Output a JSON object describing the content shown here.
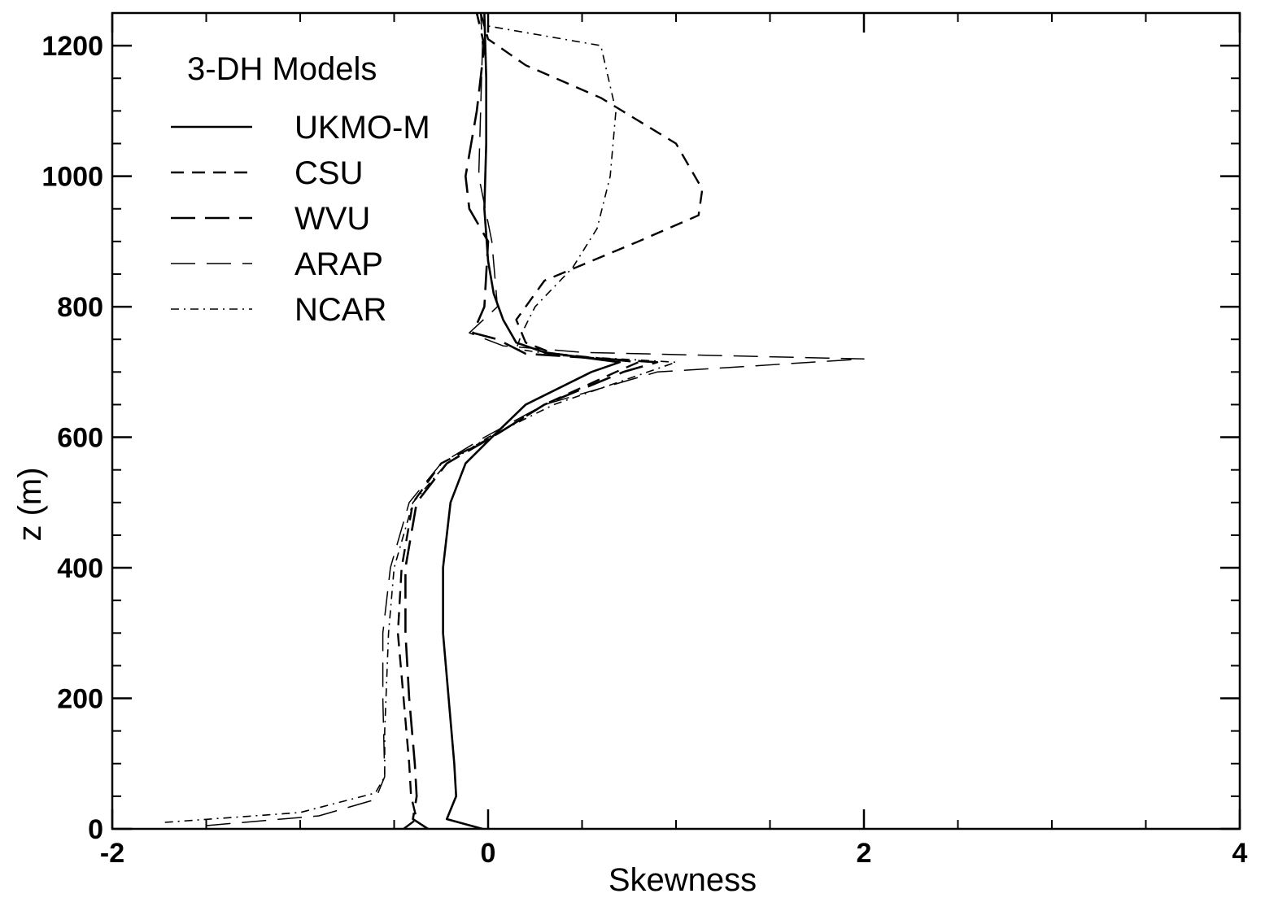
{
  "chart_data": {
    "type": "line",
    "title": "",
    "xlabel": "Skewness",
    "ylabel": "z (m)",
    "xlim": [
      -2,
      4
    ],
    "ylim": [
      0,
      1250
    ],
    "x_ticks": [
      -2,
      0,
      2,
      4
    ],
    "x_tick_labels": [
      "-2",
      "0",
      "2",
      "4"
    ],
    "y_ticks": [
      0,
      200,
      400,
      600,
      800,
      1000,
      1200
    ],
    "y_tick_labels": [
      "0",
      "200",
      "400",
      "600",
      "800",
      "1000",
      "1200"
    ],
    "grid": false,
    "legend": {
      "title": "3-DH Models",
      "position": "top-left"
    },
    "series": [
      {
        "name": "UKMO-M",
        "style": "solid",
        "points": [
          [
            -0.03,
            0
          ],
          [
            -0.22,
            15
          ],
          [
            -0.17,
            50
          ],
          [
            -0.18,
            100
          ],
          [
            -0.21,
            200
          ],
          [
            -0.24,
            300
          ],
          [
            -0.24,
            400
          ],
          [
            -0.2,
            500
          ],
          [
            -0.12,
            560
          ],
          [
            0.02,
            600
          ],
          [
            0.2,
            650
          ],
          [
            0.55,
            700
          ],
          [
            0.7,
            715
          ],
          [
            0.3,
            730
          ],
          [
            0.15,
            745
          ],
          [
            0.08,
            780
          ],
          [
            0.03,
            820
          ],
          [
            0.0,
            870
          ],
          [
            -0.02,
            950
          ],
          [
            -0.01,
            1050
          ],
          [
            -0.01,
            1150
          ],
          [
            -0.02,
            1250
          ]
        ]
      },
      {
        "name": "CSU",
        "style": "dash-short",
        "points": [
          [
            -0.45,
            0
          ],
          [
            -0.38,
            15
          ],
          [
            -0.41,
            50
          ],
          [
            -0.42,
            100
          ],
          [
            -0.45,
            200
          ],
          [
            -0.48,
            300
          ],
          [
            -0.46,
            400
          ],
          [
            -0.4,
            500
          ],
          [
            -0.25,
            560
          ],
          [
            0.02,
            600
          ],
          [
            0.3,
            650
          ],
          [
            0.68,
            700
          ],
          [
            0.8,
            715
          ],
          [
            0.35,
            728
          ],
          [
            0.2,
            745
          ],
          [
            0.15,
            780
          ],
          [
            0.3,
            840
          ],
          [
            0.8,
            900
          ],
          [
            1.12,
            940
          ],
          [
            1.14,
            980
          ],
          [
            1.0,
            1050
          ],
          [
            0.6,
            1120
          ],
          [
            0.2,
            1170
          ],
          [
            0.0,
            1210
          ],
          [
            -0.04,
            1250
          ]
        ]
      },
      {
        "name": "WVU",
        "style": "dash-long",
        "points": [
          [
            -0.32,
            0
          ],
          [
            -0.4,
            15
          ],
          [
            -0.38,
            50
          ],
          [
            -0.39,
            100
          ],
          [
            -0.42,
            200
          ],
          [
            -0.44,
            300
          ],
          [
            -0.44,
            400
          ],
          [
            -0.38,
            500
          ],
          [
            -0.22,
            560
          ],
          [
            0.02,
            600
          ],
          [
            0.3,
            650
          ],
          [
            0.72,
            700
          ],
          [
            0.9,
            715
          ],
          [
            0.2,
            728
          ],
          [
            0.05,
            750
          ],
          [
            -0.08,
            760
          ],
          [
            -0.02,
            800
          ],
          [
            0.0,
            900
          ],
          [
            -0.1,
            950
          ],
          [
            -0.12,
            1000
          ],
          [
            -0.06,
            1100
          ],
          [
            -0.02,
            1200
          ],
          [
            -0.06,
            1250
          ]
        ]
      },
      {
        "name": "ARAP",
        "style": "dash-long-thin",
        "points": [
          [
            -1.5,
            5
          ],
          [
            -0.9,
            20
          ],
          [
            -0.6,
            45
          ],
          [
            -0.55,
            80
          ],
          [
            -0.56,
            200
          ],
          [
            -0.56,
            300
          ],
          [
            -0.52,
            400
          ],
          [
            -0.42,
            500
          ],
          [
            -0.25,
            560
          ],
          [
            -0.02,
            600
          ],
          [
            0.3,
            650
          ],
          [
            0.9,
            700
          ],
          [
            2.0,
            720
          ],
          [
            0.5,
            730
          ],
          [
            0.08,
            740
          ],
          [
            -0.1,
            760
          ],
          [
            0.05,
            800
          ],
          [
            0.02,
            900
          ],
          [
            -0.05,
            1000
          ],
          [
            -0.04,
            1100
          ],
          [
            -0.03,
            1200
          ],
          [
            -0.04,
            1250
          ]
        ]
      },
      {
        "name": "NCAR",
        "style": "dash-dot",
        "points": [
          [
            -1.72,
            10
          ],
          [
            -1.0,
            25
          ],
          [
            -0.6,
            55
          ],
          [
            -0.55,
            80
          ],
          [
            -0.55,
            150
          ],
          [
            -0.53,
            300
          ],
          [
            -0.5,
            400
          ],
          [
            -0.4,
            500
          ],
          [
            -0.22,
            560
          ],
          [
            0.0,
            600
          ],
          [
            0.35,
            650
          ],
          [
            0.85,
            700
          ],
          [
            1.0,
            715
          ],
          [
            0.4,
            725
          ],
          [
            0.15,
            735
          ],
          [
            0.18,
            760
          ],
          [
            0.25,
            800
          ],
          [
            0.45,
            860
          ],
          [
            0.58,
            920
          ],
          [
            0.65,
            1000
          ],
          [
            0.68,
            1100
          ],
          [
            0.6,
            1200
          ],
          [
            0.0,
            1230
          ]
        ]
      }
    ]
  }
}
